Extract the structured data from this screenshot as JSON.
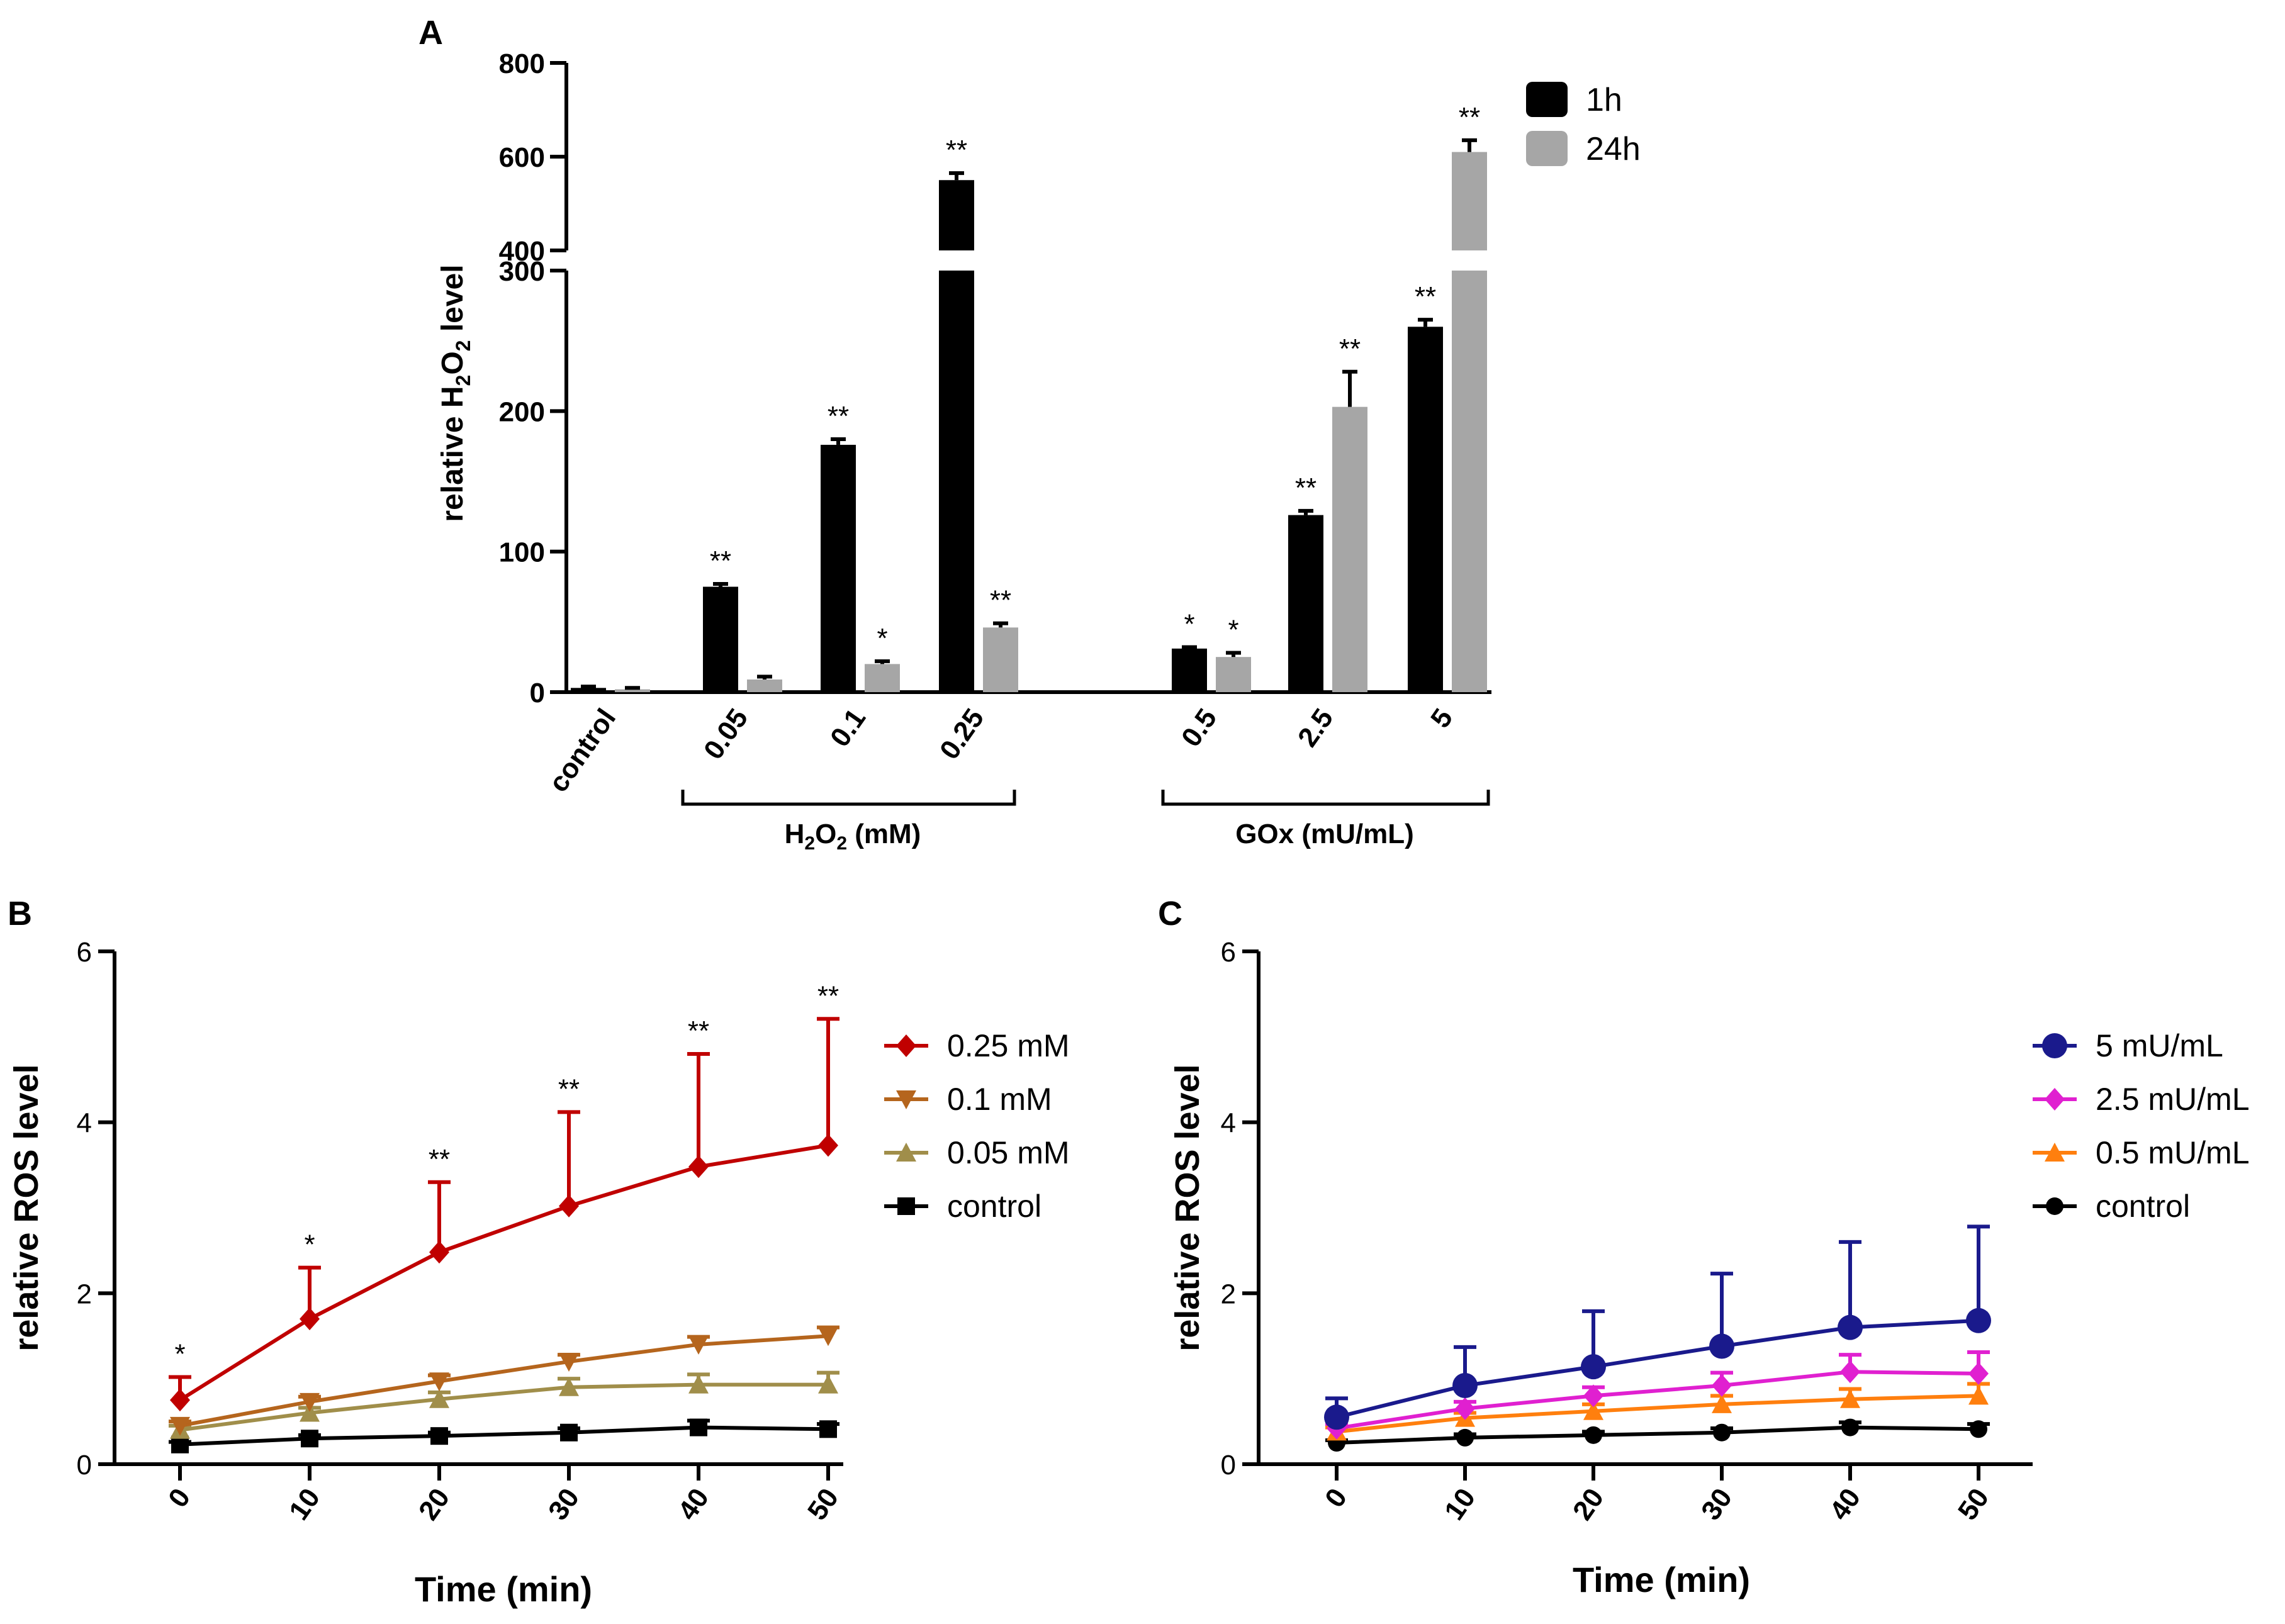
{
  "chart_data": [
    {
      "panel": "A",
      "type": "bar",
      "panel_label": "A",
      "ylabel_main": "relative H",
      "ylabel_sub1": "2",
      "ylabel_mid": "O",
      "ylabel_sub2": "2",
      "ylabel_end": " level",
      "ylim": [
        0,
        800
      ],
      "axis_break": [
        300,
        400
      ],
      "yticks": [
        "0",
        "100",
        "200",
        "300",
        "400",
        "600",
        "800"
      ],
      "categories": [
        "control",
        "0.05",
        "0.1",
        "0.25",
        "0.5",
        "2.5",
        "5"
      ],
      "series": [
        {
          "name": "1h",
          "color": "#000000",
          "values": [
            3,
            75,
            176,
            550,
            31,
            126,
            260
          ],
          "errors": [
            1,
            2,
            4,
            15,
            1,
            3,
            5
          ],
          "sig": [
            "",
            "**",
            "**",
            "**",
            "*",
            "**",
            "**"
          ]
        },
        {
          "name": "24h",
          "color": "#a6a6a6",
          "values": [
            2,
            9,
            20,
            46,
            25,
            203,
            610
          ],
          "errors": [
            1,
            2,
            2,
            3,
            3,
            25,
            25
          ],
          "sig": [
            "",
            "",
            "*",
            "**",
            "*",
            "**",
            "**"
          ]
        }
      ],
      "groups": [
        {
          "label_main": "H",
          "label_sub": "2",
          "label_mid": "O",
          "label_sub2": "2",
          "label_end": " (mM)"
        },
        {
          "label": "GOx (mU/mL)"
        }
      ],
      "legend": [
        "1h",
        "24h"
      ]
    },
    {
      "panel": "B",
      "type": "line",
      "panel_label": "B",
      "xlabel": "Time (min)",
      "ylabel": "relative ROS level",
      "x": [
        0,
        10,
        20,
        30,
        40,
        50
      ],
      "xticks": [
        "0",
        "10",
        "20",
        "30",
        "40",
        "50"
      ],
      "yticks": [
        "0",
        "2",
        "4",
        "6"
      ],
      "ylim": [
        0,
        6
      ],
      "series": [
        {
          "name": "0.25 mM",
          "color": "#c00000",
          "marker": "diamond",
          "values": [
            0.75,
            1.7,
            2.48,
            3.02,
            3.48,
            3.73
          ],
          "errors": [
            0.27,
            0.6,
            0.82,
            1.1,
            1.32,
            1.48
          ],
          "sig": [
            "*",
            "*",
            "**",
            "**",
            "**",
            "**"
          ]
        },
        {
          "name": "0.1 mM",
          "color": "#b5651d",
          "marker": "triangle-down",
          "values": [
            0.45,
            0.73,
            0.97,
            1.2,
            1.4,
            1.5
          ],
          "errors": [
            0.05,
            0.06,
            0.07,
            0.08,
            0.09,
            0.1
          ],
          "sig": []
        },
        {
          "name": "0.05 mM",
          "color": "#a08e4a",
          "marker": "triangle-up",
          "values": [
            0.4,
            0.6,
            0.76,
            0.9,
            0.93,
            0.93
          ],
          "errors": [
            0.05,
            0.06,
            0.08,
            0.1,
            0.12,
            0.14
          ],
          "sig": []
        },
        {
          "name": "control",
          "color": "#000000",
          "marker": "square",
          "values": [
            0.23,
            0.3,
            0.33,
            0.37,
            0.43,
            0.41
          ],
          "errors": [
            0.03,
            0.04,
            0.04,
            0.05,
            0.08,
            0.06
          ],
          "sig": []
        }
      ],
      "legend": [
        "0.25 mM",
        "0.1 mM",
        "0.05 mM",
        "control"
      ]
    },
    {
      "panel": "C",
      "type": "line",
      "panel_label": "C",
      "xlabel": "Time (min)",
      "ylabel": "relative ROS level",
      "x": [
        0,
        10,
        20,
        30,
        40,
        50
      ],
      "xticks": [
        "0",
        "10",
        "20",
        "30",
        "40",
        "50"
      ],
      "yticks": [
        "0",
        "2",
        "4",
        "6"
      ],
      "ylim": [
        0,
        6
      ],
      "series": [
        {
          "name": "5 mU/mL",
          "color": "#1a1a8c",
          "marker": "circle",
          "values": [
            0.55,
            0.92,
            1.14,
            1.38,
            1.6,
            1.68
          ],
          "errors": [
            0.22,
            0.45,
            0.65,
            0.85,
            1.0,
            1.1
          ],
          "sig": []
        },
        {
          "name": "2.5 mU/mL",
          "color": "#e020d0",
          "marker": "diamond",
          "values": [
            0.42,
            0.65,
            0.8,
            0.92,
            1.08,
            1.06
          ],
          "errors": [
            0.05,
            0.08,
            0.1,
            0.15,
            0.2,
            0.25
          ],
          "sig": []
        },
        {
          "name": "0.5 mU/mL",
          "color": "#ff7f0e",
          "marker": "triangle-up",
          "values": [
            0.38,
            0.54,
            0.62,
            0.7,
            0.76,
            0.8
          ],
          "errors": [
            0.05,
            0.06,
            0.08,
            0.1,
            0.12,
            0.14
          ],
          "sig": []
        },
        {
          "name": "control",
          "color": "#000000",
          "marker": "circle-small",
          "values": [
            0.25,
            0.31,
            0.34,
            0.37,
            0.43,
            0.41
          ],
          "errors": [
            0.03,
            0.04,
            0.04,
            0.05,
            0.06,
            0.06
          ],
          "sig": []
        }
      ],
      "legend": [
        "5 mU/mL",
        "2.5 mU/mL",
        "0.5 mU/mL",
        "control"
      ]
    }
  ]
}
